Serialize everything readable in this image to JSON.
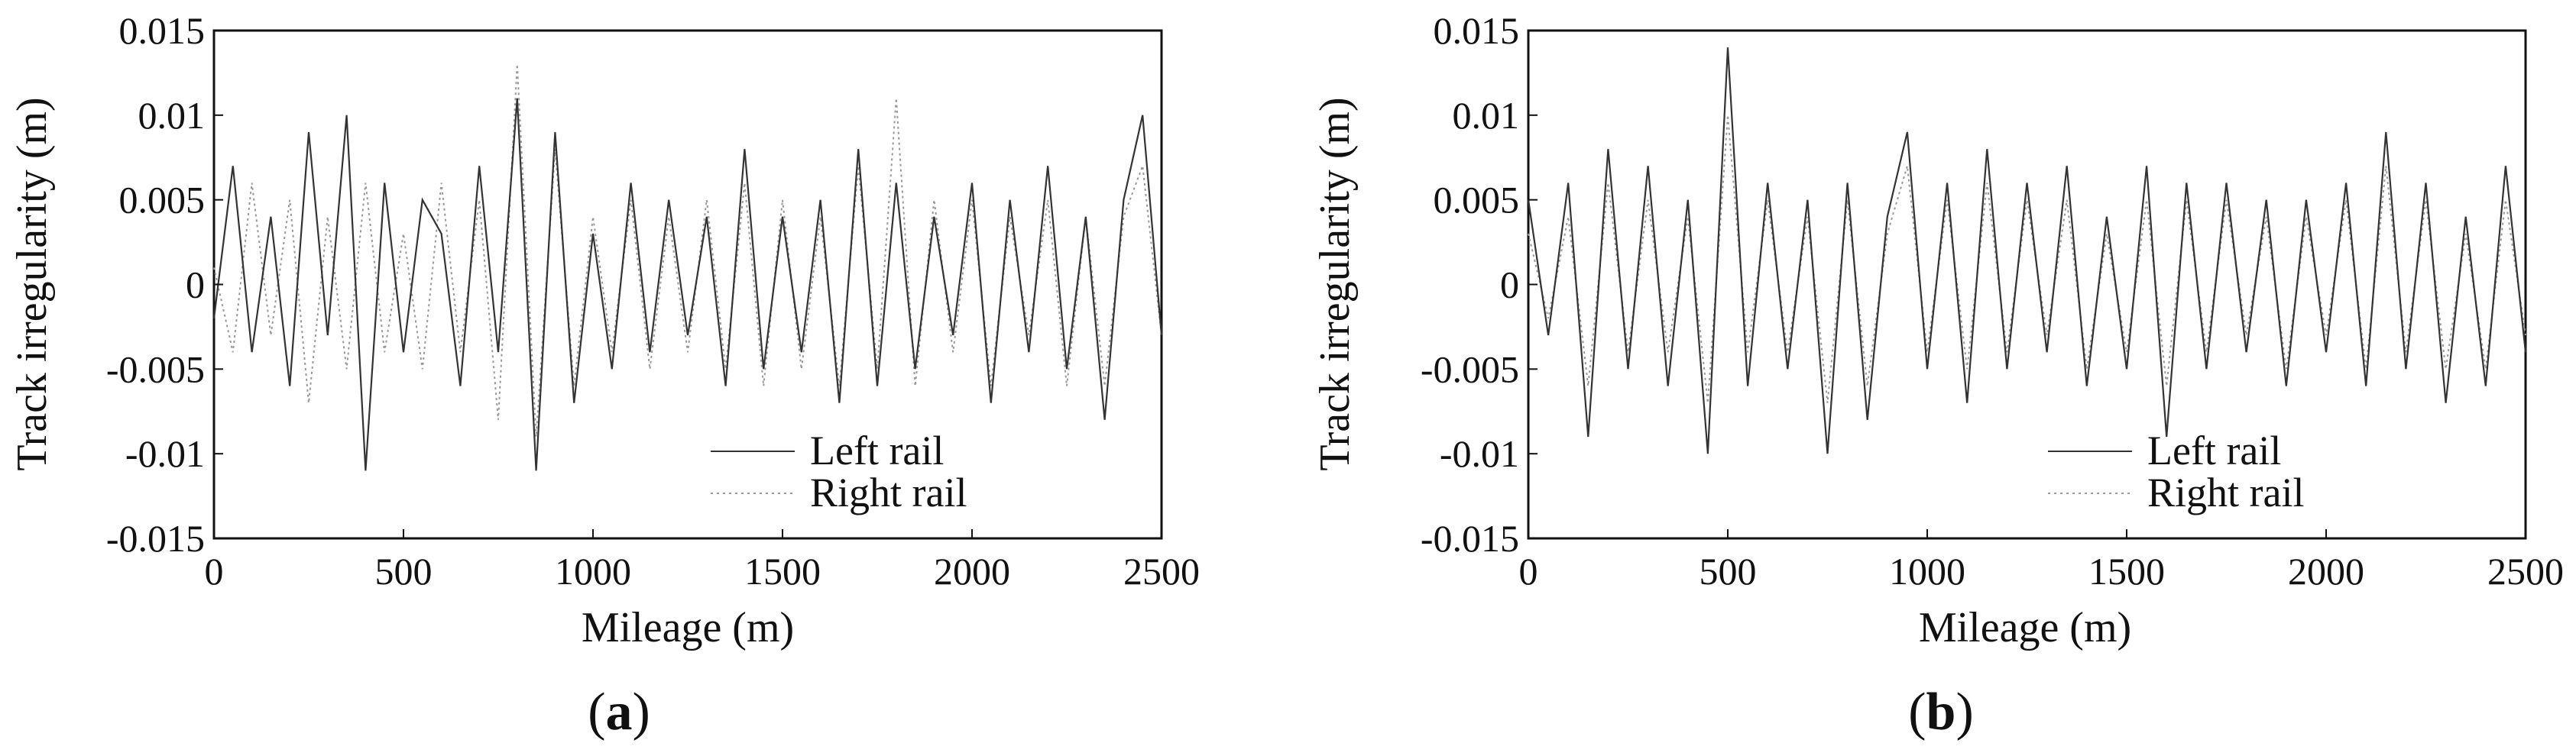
{
  "chart_data": [
    {
      "type": "line",
      "caption": "a",
      "xlabel": "Mileage (m)",
      "ylabel": "Track irregularity (m)",
      "xlim": [
        0,
        2500
      ],
      "ylim": [
        -0.015,
        0.015
      ],
      "x_ticks": [
        0,
        500,
        1000,
        1500,
        2000,
        2500
      ],
      "x_tick_labels": [
        "0",
        "500",
        "1000",
        "1500",
        "2000",
        "2500"
      ],
      "y_ticks": [
        -0.015,
        -0.01,
        -0.005,
        0,
        0.005,
        0.01,
        0.015
      ],
      "y_tick_labels": [
        "-0.015",
        "-0.01",
        "-0.005",
        "0",
        "0.005",
        "0.01",
        "0.015"
      ],
      "legend": {
        "position": "bottom-right"
      },
      "grid": false,
      "series": [
        {
          "name": "Left rail",
          "color": "#333333",
          "style": "solid",
          "x": [
            0,
            50,
            100,
            150,
            200,
            250,
            300,
            350,
            400,
            450,
            500,
            550,
            600,
            650,
            700,
            750,
            800,
            850,
            900,
            950,
            1000,
            1050,
            1100,
            1150,
            1200,
            1250,
            1300,
            1350,
            1400,
            1450,
            1500,
            1550,
            1600,
            1650,
            1700,
            1750,
            1800,
            1850,
            1900,
            1950,
            2000,
            2050,
            2100,
            2150,
            2200,
            2250,
            2300,
            2350,
            2400,
            2450,
            2500
          ],
          "y": [
            -0.002,
            0.007,
            -0.004,
            0.004,
            -0.006,
            0.009,
            -0.003,
            0.01,
            -0.011,
            0.006,
            -0.004,
            0.005,
            0.003,
            -0.006,
            0.007,
            -0.004,
            0.011,
            -0.011,
            0.009,
            -0.007,
            0.003,
            -0.005,
            0.006,
            -0.004,
            0.005,
            -0.003,
            0.004,
            -0.006,
            0.008,
            -0.005,
            0.004,
            -0.004,
            0.005,
            -0.007,
            0.008,
            -0.006,
            0.006,
            -0.005,
            0.004,
            -0.003,
            0.006,
            -0.007,
            0.005,
            -0.004,
            0.007,
            -0.005,
            0.004,
            -0.008,
            0.005,
            0.01,
            -0.003
          ]
        },
        {
          "name": "Right rail",
          "color": "#999999",
          "style": "dotted",
          "x": [
            0,
            50,
            100,
            150,
            200,
            250,
            300,
            350,
            400,
            450,
            500,
            550,
            600,
            650,
            700,
            750,
            800,
            850,
            900,
            950,
            1000,
            1050,
            1100,
            1150,
            1200,
            1250,
            1300,
            1350,
            1400,
            1450,
            1500,
            1550,
            1600,
            1650,
            1700,
            1750,
            1800,
            1850,
            1900,
            1950,
            2000,
            2050,
            2100,
            2150,
            2200,
            2250,
            2300,
            2350,
            2400,
            2450,
            2500
          ],
          "y": [
            0.001,
            -0.004,
            0.006,
            -0.003,
            0.005,
            -0.007,
            0.004,
            -0.005,
            0.006,
            -0.004,
            0.003,
            -0.005,
            0.006,
            -0.004,
            0.005,
            -0.008,
            0.013,
            -0.009,
            0.008,
            -0.006,
            0.004,
            -0.004,
            0.005,
            -0.005,
            0.004,
            -0.004,
            0.005,
            -0.005,
            0.006,
            -0.006,
            0.005,
            -0.005,
            0.004,
            -0.006,
            0.007,
            -0.005,
            0.011,
            -0.006,
            0.005,
            -0.004,
            0.005,
            -0.006,
            0.004,
            -0.003,
            0.005,
            -0.006,
            0.004,
            -0.006,
            0.004,
            0.007,
            -0.003
          ]
        }
      ]
    },
    {
      "type": "line",
      "caption": "b",
      "xlabel": "Mileage (m)",
      "ylabel": "Track irregularity (m)",
      "xlim": [
        0,
        2500
      ],
      "ylim": [
        -0.015,
        0.015
      ],
      "x_ticks": [
        0,
        500,
        1000,
        1500,
        2000,
        2500
      ],
      "x_tick_labels": [
        "0",
        "500",
        "1000",
        "1500",
        "2000",
        "2500"
      ],
      "y_ticks": [
        -0.015,
        -0.01,
        -0.005,
        0,
        0.005,
        0.01,
        0.015
      ],
      "y_tick_labels": [
        "-0.015",
        "-0.01",
        "-0.005",
        "0",
        "0.005",
        "0.01",
        "0.015"
      ],
      "legend": {
        "position": "bottom-right"
      },
      "grid": false,
      "series": [
        {
          "name": "Left rail",
          "color": "#333333",
          "style": "solid",
          "x": [
            0,
            50,
            100,
            150,
            200,
            250,
            300,
            350,
            400,
            450,
            500,
            550,
            600,
            650,
            700,
            750,
            800,
            850,
            900,
            950,
            1000,
            1050,
            1100,
            1150,
            1200,
            1250,
            1300,
            1350,
            1400,
            1450,
            1500,
            1550,
            1600,
            1650,
            1700,
            1750,
            1800,
            1850,
            1900,
            1950,
            2000,
            2050,
            2100,
            2150,
            2200,
            2250,
            2300,
            2350,
            2400,
            2450,
            2500
          ],
          "y": [
            0.005,
            -0.003,
            0.006,
            -0.009,
            0.008,
            -0.005,
            0.007,
            -0.006,
            0.005,
            -0.01,
            0.014,
            -0.006,
            0.006,
            -0.005,
            0.005,
            -0.01,
            0.006,
            -0.008,
            0.004,
            0.009,
            -0.005,
            0.006,
            -0.007,
            0.008,
            -0.005,
            0.006,
            -0.004,
            0.007,
            -0.006,
            0.004,
            -0.005,
            0.007,
            -0.009,
            0.006,
            -0.005,
            0.006,
            -0.004,
            0.005,
            -0.006,
            0.005,
            -0.004,
            0.006,
            -0.006,
            0.009,
            -0.005,
            0.006,
            -0.007,
            0.004,
            -0.006,
            0.007,
            -0.004
          ]
        },
        {
          "name": "Right rail",
          "color": "#999999",
          "style": "dotted",
          "x": [
            0,
            50,
            100,
            150,
            200,
            250,
            300,
            350,
            400,
            450,
            500,
            550,
            600,
            650,
            700,
            750,
            800,
            850,
            900,
            950,
            1000,
            1050,
            1100,
            1150,
            1200,
            1250,
            1300,
            1350,
            1400,
            1450,
            1500,
            1550,
            1600,
            1650,
            1700,
            1750,
            1800,
            1850,
            1900,
            1950,
            2000,
            2050,
            2100,
            2150,
            2200,
            2250,
            2300,
            2350,
            2400,
            2450,
            2500
          ],
          "y": [
            0.003,
            -0.002,
            0.004,
            -0.006,
            0.006,
            -0.004,
            0.005,
            -0.004,
            0.004,
            -0.007,
            0.01,
            -0.004,
            0.005,
            -0.004,
            0.004,
            -0.007,
            0.005,
            -0.006,
            0.003,
            0.007,
            -0.004,
            0.005,
            -0.005,
            0.006,
            -0.004,
            0.005,
            -0.003,
            0.005,
            -0.005,
            0.003,
            -0.004,
            0.005,
            -0.006,
            0.005,
            -0.004,
            0.005,
            -0.003,
            0.004,
            -0.005,
            0.004,
            -0.003,
            0.005,
            -0.005,
            0.007,
            -0.004,
            0.005,
            -0.005,
            0.003,
            -0.005,
            0.005,
            -0.003
          ]
        }
      ]
    }
  ]
}
